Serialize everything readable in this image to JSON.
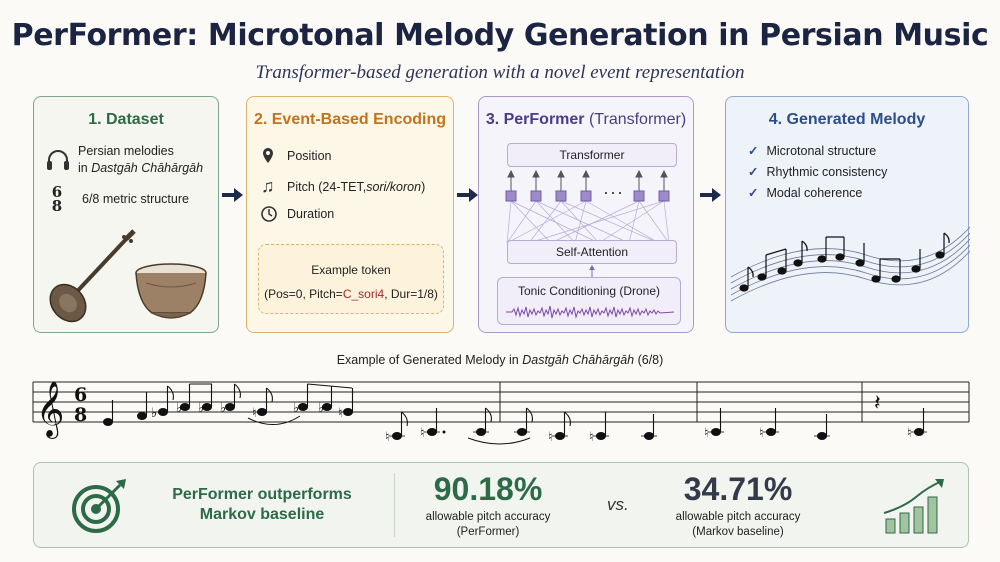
{
  "header": {
    "title": "PerFormer: Microtonal Melody Generation in Persian Music",
    "subtitle": "Transformer-based generation with a novel event representation"
  },
  "panel1": {
    "title": "1. Dataset",
    "line1": "Persian melodies",
    "line2_prefix": "in ",
    "line2_em": "Dastgāh Chāhārgāh",
    "meter_glyph": "6/8",
    "meter_text": "6/8 metric structure",
    "icons": [
      "headphones-icon",
      "time-signature-icon",
      "setar-instrument",
      "tombak-drum"
    ]
  },
  "panel2": {
    "title": "2. Event-Based Encoding",
    "position": "Position",
    "pitch_prefix": "Pitch (24-TET, ",
    "pitch_em": "sori/koron",
    "pitch_suffix": ")",
    "duration": "Duration",
    "token_label": "Example token",
    "token_pre": "(Pos=0, Pitch=",
    "token_hl": "C_sori4",
    "token_post": ", Dur=1/8)",
    "icons": [
      "location-pin-icon",
      "music-note-icon",
      "clock-icon"
    ]
  },
  "panel3": {
    "title_bold": "3. PerFormer",
    "title_rest": " (Transformer)",
    "transformer": "Transformer",
    "ellipsis": "···",
    "self_attention": "Self-Attention",
    "tonic": "Tonic Conditioning (Drone)"
  },
  "panel4": {
    "title": "4. Generated Melody",
    "checks": [
      "Microtonal structure",
      "Rhythmic consistency",
      "Modal coherence"
    ]
  },
  "staff": {
    "caption_prefix": "Example of Generated Melody  in  ",
    "caption_em": "Dastgāh Chāhārgāh",
    "caption_suffix": " (6/8)",
    "time_top": "6",
    "time_bottom": "8"
  },
  "results": {
    "headline_line1": "PerFormer outperforms",
    "headline_line2": "Markov baseline",
    "performer_pct": "90.18%",
    "performer_label_line1": "allowable pitch accuracy",
    "performer_label_line2": "(PerFormer)",
    "vs": "vs.",
    "markov_pct": "34.71%",
    "markov_label_line1": "allowable pitch accuracy",
    "markov_label_line2": "(Markov baseline)"
  },
  "colors": {
    "dataset": "#2d6a48",
    "encoding": "#c0741c",
    "model": "#4a3c86",
    "output": "#2c4e8c",
    "performer_pct": "#2d6a48",
    "markov_pct": "#333a4a",
    "highlight": "#a7262a"
  }
}
